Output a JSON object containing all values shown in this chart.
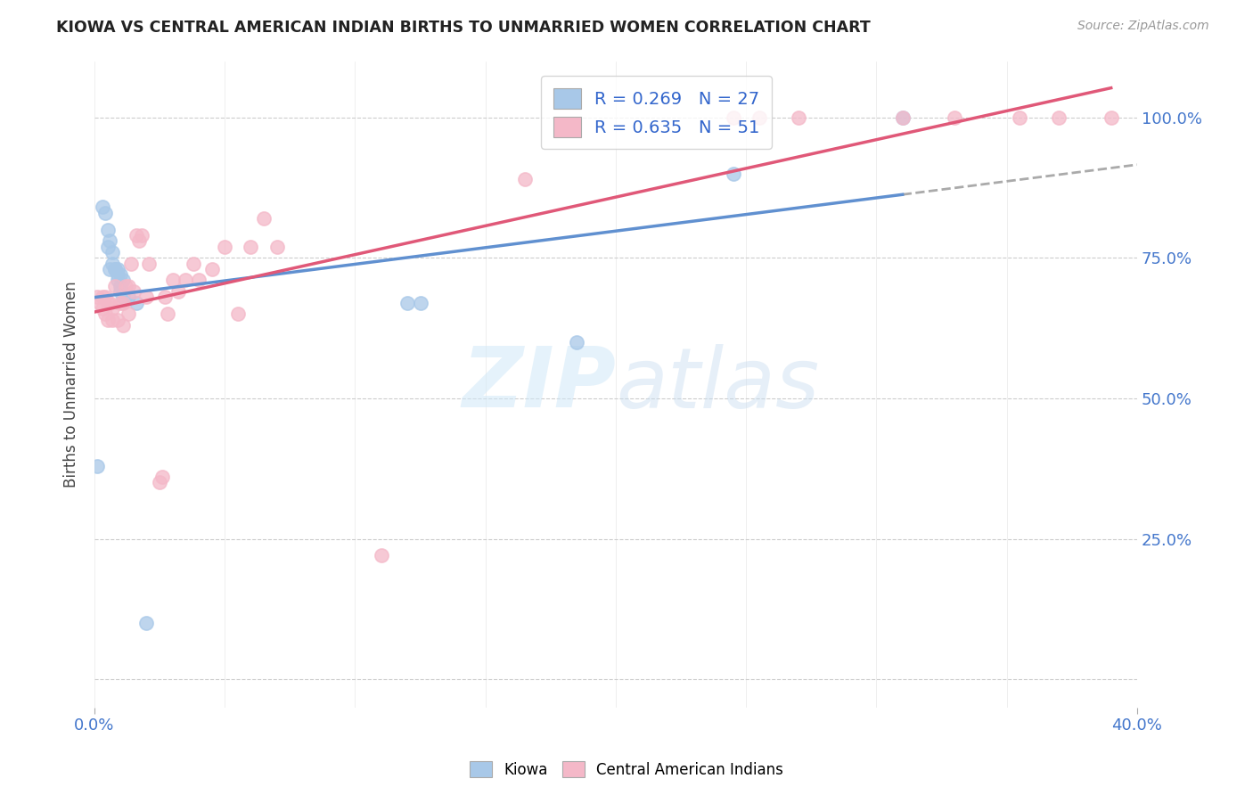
{
  "title": "KIOWA VS CENTRAL AMERICAN INDIAN BIRTHS TO UNMARRIED WOMEN CORRELATION CHART",
  "source": "Source: ZipAtlas.com",
  "ylabel": "Births to Unmarried Women",
  "kiowa_R": 0.269,
  "kiowa_N": 27,
  "cai_R": 0.635,
  "cai_N": 51,
  "kiowa_color": "#a8c8e8",
  "cai_color": "#f4b8c8",
  "kiowa_line_color": "#6090d0",
  "cai_line_color": "#e05878",
  "dashed_line_color": "#aaaaaa",
  "kiowa_x": [
    0.001,
    0.003,
    0.004,
    0.005,
    0.005,
    0.006,
    0.006,
    0.007,
    0.007,
    0.008,
    0.008,
    0.009,
    0.009,
    0.009,
    0.01,
    0.01,
    0.01,
    0.011,
    0.011,
    0.013,
    0.016,
    0.02,
    0.12,
    0.125,
    0.185,
    0.245,
    0.31
  ],
  "kiowa_y": [
    0.38,
    0.84,
    0.83,
    0.8,
    0.77,
    0.78,
    0.73,
    0.76,
    0.74,
    0.73,
    0.73,
    0.73,
    0.72,
    0.71,
    0.72,
    0.7,
    0.69,
    0.71,
    0.68,
    0.68,
    0.67,
    0.1,
    0.67,
    0.67,
    0.6,
    0.9,
    1.0
  ],
  "cai_x": [
    0.001,
    0.002,
    0.003,
    0.003,
    0.004,
    0.004,
    0.005,
    0.005,
    0.006,
    0.007,
    0.007,
    0.008,
    0.009,
    0.01,
    0.011,
    0.011,
    0.012,
    0.013,
    0.013,
    0.014,
    0.015,
    0.016,
    0.017,
    0.018,
    0.02,
    0.021,
    0.025,
    0.026,
    0.027,
    0.028,
    0.03,
    0.032,
    0.035,
    0.038,
    0.04,
    0.045,
    0.05,
    0.055,
    0.06,
    0.065,
    0.07,
    0.11,
    0.165,
    0.245,
    0.255,
    0.27,
    0.31,
    0.33,
    0.355,
    0.37,
    0.39
  ],
  "cai_y": [
    0.68,
    0.67,
    0.66,
    0.68,
    0.65,
    0.68,
    0.64,
    0.67,
    0.67,
    0.64,
    0.66,
    0.7,
    0.64,
    0.67,
    0.67,
    0.63,
    0.7,
    0.65,
    0.7,
    0.74,
    0.69,
    0.79,
    0.78,
    0.79,
    0.68,
    0.74,
    0.35,
    0.36,
    0.68,
    0.65,
    0.71,
    0.69,
    0.71,
    0.74,
    0.71,
    0.73,
    0.77,
    0.65,
    0.77,
    0.82,
    0.77,
    0.22,
    0.89,
    1.0,
    1.0,
    1.0,
    1.0,
    1.0,
    1.0,
    1.0,
    1.0
  ],
  "watermark_zip": "ZIP",
  "watermark_atlas": "atlas",
  "background_color": "#ffffff",
  "xlim": [
    0.0,
    0.4
  ],
  "ylim": [
    -0.05,
    1.1
  ],
  "ytick_positions": [
    0.0,
    0.25,
    0.5,
    0.75,
    1.0
  ],
  "ytick_labels": [
    "",
    "25.0%",
    "50.0%",
    "75.0%",
    "100.0%"
  ],
  "xtick_positions": [
    0.0,
    0.4
  ],
  "xtick_labels": [
    "0.0%",
    "40.0%"
  ]
}
